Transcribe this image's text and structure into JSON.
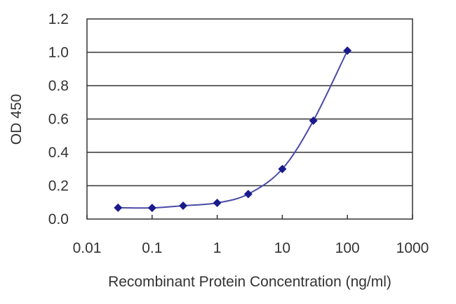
{
  "chart_data": {
    "type": "line",
    "title": "",
    "xlabel": "Recombinant Protein Concentration (ng/ml)",
    "ylabel": "OD 450",
    "xscale": "log",
    "xlim": [
      0.01,
      1000
    ],
    "ylim": [
      0.0,
      1.2
    ],
    "x_ticks": [
      "0.01",
      "0.1",
      "1",
      "10",
      "100",
      "1000"
    ],
    "y_ticks": [
      "0.0",
      "0.2",
      "0.4",
      "0.6",
      "0.8",
      "1.0",
      "1.2"
    ],
    "grid": "horizontal",
    "legend": null,
    "series": [
      {
        "name": "OD 450",
        "color": "#1a1a8c",
        "marker": "diamond",
        "x": [
          0.03,
          0.1,
          0.3,
          1,
          3,
          10,
          30,
          100
        ],
        "values": [
          0.068,
          0.067,
          0.08,
          0.097,
          0.15,
          0.3,
          0.59,
          1.01
        ]
      }
    ]
  }
}
